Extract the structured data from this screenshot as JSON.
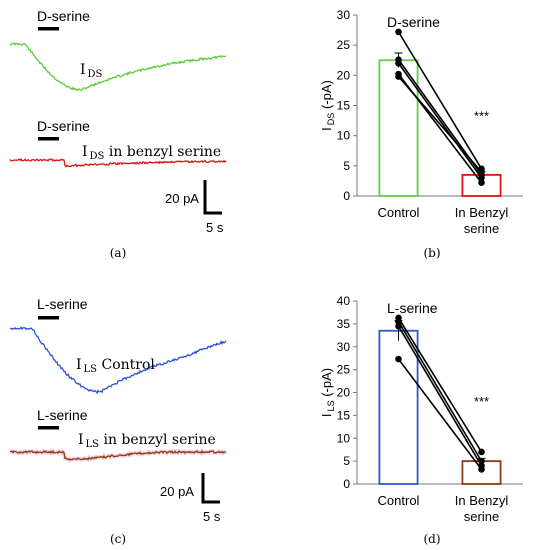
{
  "panel_labels": {
    "a": "(a)",
    "b": "(b)",
    "c": "(c)",
    "d": "(d)"
  },
  "traces": {
    "a": {
      "top_label": "D-serine",
      "top_trace_label_main": "I",
      "top_trace_label_sub": "DS",
      "top_trace_label_rest": "",
      "bottom_label": "D-serine",
      "bottom_trace_label_main": "I",
      "bottom_trace_label_sub": "DS",
      "bottom_trace_label_rest": " in benzyl serine",
      "scale_y": "20 pA",
      "scale_x": "5 s",
      "top_color": "#5ccc3a",
      "bottom_color": "#dd1111"
    },
    "c": {
      "top_label": "L-serine",
      "top_trace_label_main": "I",
      "top_trace_label_sub": "LS",
      "top_trace_label_rest": " Control",
      "bottom_label": "L-serine",
      "bottom_trace_label_main": "I",
      "bottom_trace_label_sub": "LS",
      "bottom_trace_label_rest": " in benzyl serine",
      "scale_y": "20 pA",
      "scale_x": "5 s",
      "top_color": "#2f50d8",
      "bottom_color": "#8b3a1a"
    }
  },
  "chart_data": [
    {
      "panel": "b",
      "type": "bar",
      "title": "D-serine",
      "categories": [
        "Control",
        "In Benzyl serine"
      ],
      "category_lines": [
        [
          "Control"
        ],
        [
          "In Benzyl",
          "serine"
        ]
      ],
      "values": [
        22.5,
        3.5
      ],
      "errors": [
        1.2,
        0.5
      ],
      "bar_colors": [
        "#66cc44",
        "#dd1111"
      ],
      "ylabel_main": "I",
      "ylabel_sub": "DS",
      "ylabel_rest": " (-pA)",
      "ylim": [
        0,
        30
      ],
      "yticks": [
        0,
        5,
        10,
        15,
        20,
        25,
        30
      ],
      "significance": "***",
      "paired_points": [
        [
          27.2,
          4.5
        ],
        [
          22.6,
          3.5
        ],
        [
          22.0,
          3.0
        ],
        [
          20.2,
          2.2
        ],
        [
          19.8,
          4.0
        ]
      ],
      "grid": false
    },
    {
      "panel": "d",
      "type": "bar",
      "title": "L-serine",
      "categories": [
        "Control",
        "In Benzyl serine"
      ],
      "category_lines": [
        [
          "Control"
        ],
        [
          "In Benzyl",
          "serine"
        ]
      ],
      "values": [
        33.5,
        5.0
      ],
      "errors": [
        2.2,
        0.6
      ],
      "bar_colors": [
        "#3355cc",
        "#8b3a1a"
      ],
      "ylabel_main": "I",
      "ylabel_sub": "LS",
      "ylabel_rest": " (-pA)",
      "ylim": [
        0,
        40
      ],
      "yticks": [
        0,
        5,
        10,
        15,
        20,
        25,
        30,
        35,
        40
      ],
      "significance": "***",
      "paired_points": [
        [
          36.3,
          7.0
        ],
        [
          35.5,
          5.0
        ],
        [
          34.5,
          4.0
        ],
        [
          27.3,
          3.2
        ]
      ],
      "grid": false
    }
  ]
}
